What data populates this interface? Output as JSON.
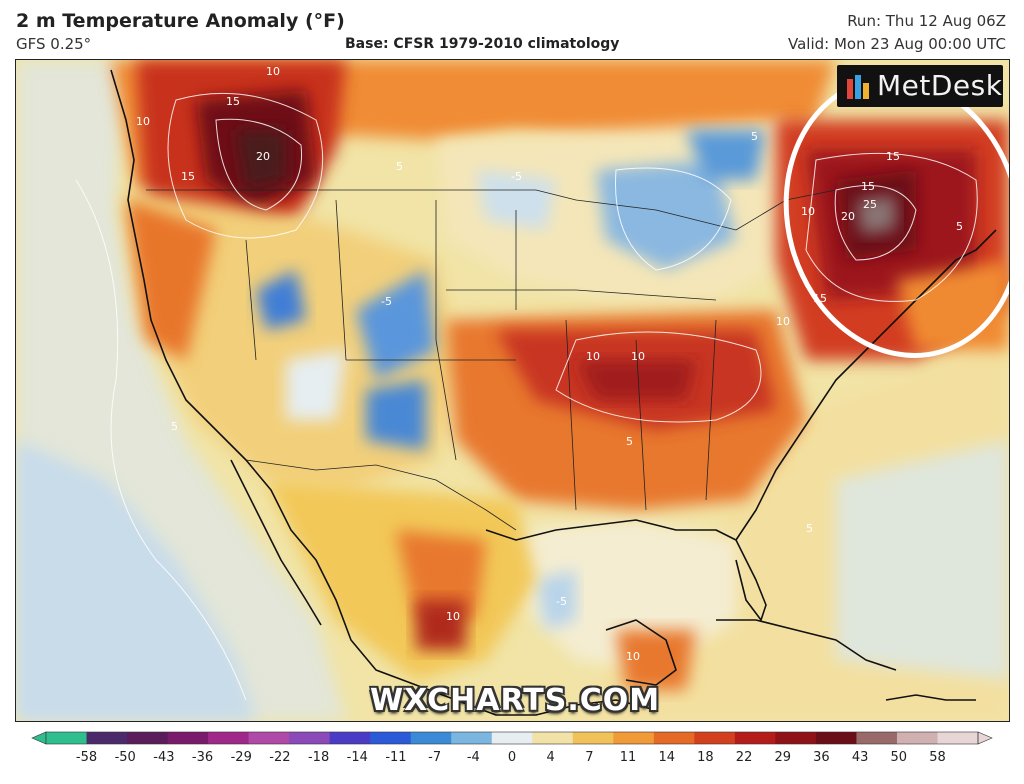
{
  "header": {
    "title": "2 m Temperature Anomaly (°F)",
    "model": "GFS 0.25°",
    "base": "Base: CFSR 1979-2010 climatology",
    "run": "Run: Thu 12 Aug 06Z",
    "valid": "Valid: Mon 23 Aug 00:00 UTC"
  },
  "brand": {
    "name": "MetDesk"
  },
  "watermark": "WXCHARTS.COM",
  "colorbar": {
    "labels": [
      "-58",
      "-50",
      "-43",
      "-36",
      "-29",
      "-22",
      "-18",
      "-14",
      "-11",
      "-7",
      "-4",
      "0",
      "4",
      "7",
      "11",
      "14",
      "18",
      "22",
      "29",
      "36",
      "43",
      "50",
      "58"
    ],
    "colors": [
      "#2fbf8f",
      "#4b2a6b",
      "#5a1c5a",
      "#7a1a6a",
      "#a0288a",
      "#b04aa8",
      "#8a4ab8",
      "#4a3cc4",
      "#2a5ad8",
      "#3a8ad8",
      "#7ab6e0",
      "#e6eef2",
      "#f2e2a8",
      "#f2c25a",
      "#f09a38",
      "#e46a26",
      "#d2401e",
      "#b41c1a",
      "#8e1218",
      "#6a0e18",
      "#9a6a6a",
      "#d0b0b0",
      "#e8d6d6"
    ]
  },
  "map": {
    "annotation": "highlight-circle-northeast",
    "contour_labels": [
      "10",
      "15",
      "20",
      "15",
      "10",
      "5",
      "-5",
      "-5",
      "5",
      "10",
      "10",
      "15",
      "20",
      "25",
      "15",
      "10",
      "5",
      "10",
      "10",
      "5",
      "-5",
      "5",
      "10",
      "15",
      "5"
    ]
  }
}
